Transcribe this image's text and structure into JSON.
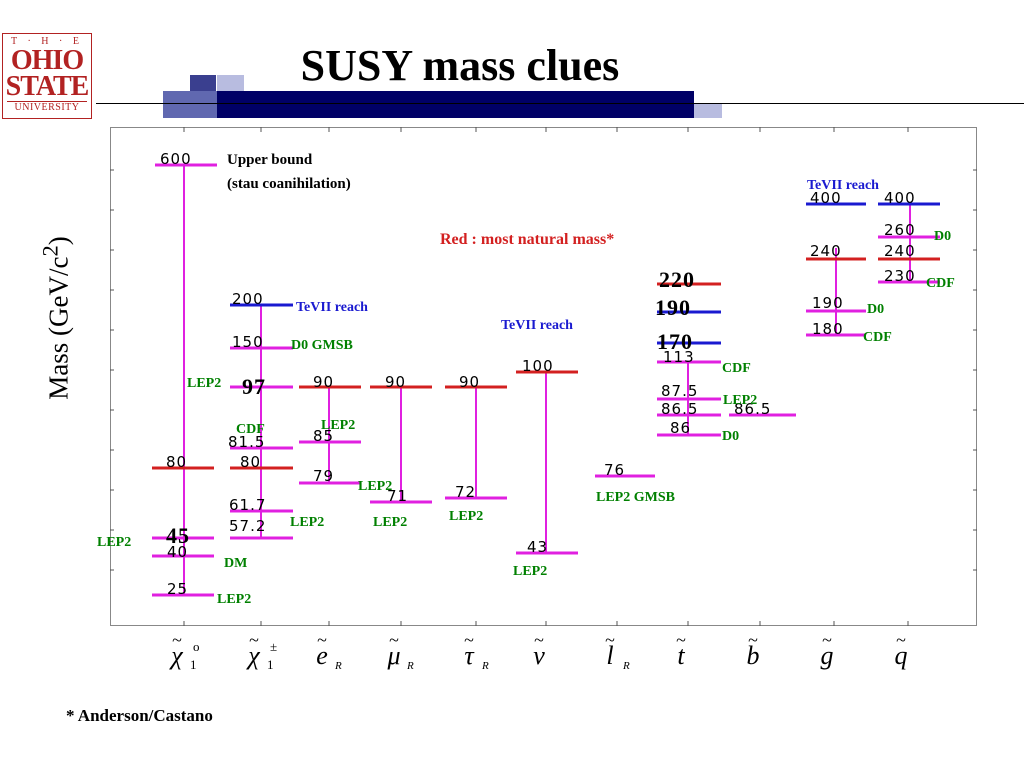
{
  "logo": {
    "line1": "T · H · E",
    "line2": "OHIO",
    "line3": "STATE",
    "line4": "UNIVERSITY"
  },
  "title": "SUSY mass clues",
  "footnote": "* Anderson/Castano",
  "colors": {
    "magenta": "#e020e0",
    "red": "#d32020",
    "blue": "#1a1ad0",
    "green": "#008000",
    "navy": "#000066",
    "logo_red": "#b22222"
  },
  "chart_data": {
    "type": "table",
    "ylabel": "Mass (GeV/c²)",
    "categories": [
      {
        "symbol": "χ",
        "sup": "o",
        "sub": "1"
      },
      {
        "symbol": "χ",
        "sup": "±",
        "sub": "1"
      },
      {
        "symbol": "e",
        "sub": "R"
      },
      {
        "symbol": "μ",
        "sub": "R"
      },
      {
        "symbol": "τ",
        "sub": "R"
      },
      {
        "symbol": "ν"
      },
      {
        "symbol": "l",
        "sub": "R"
      },
      {
        "symbol": "t"
      },
      {
        "symbol": "b"
      },
      {
        "symbol": "g"
      },
      {
        "symbol": "q"
      }
    ],
    "marks": [
      {
        "label": "600",
        "color": "magenta"
      },
      {
        "label": "80",
        "color": "red"
      },
      {
        "label": "45",
        "color": "magenta",
        "bold": true
      },
      {
        "label": "40",
        "color": "magenta"
      },
      {
        "label": "25",
        "color": "magenta"
      },
      {
        "label": "200",
        "color": "blue"
      },
      {
        "label": "150",
        "color": "magenta"
      },
      {
        "label": "97",
        "color": "magenta",
        "bold": true
      },
      {
        "label": "81.5",
        "color": "magenta"
      },
      {
        "label": "80",
        "color": "red"
      },
      {
        "label": "61.7",
        "color": "magenta"
      },
      {
        "label": "57.2",
        "color": "magenta"
      },
      {
        "label": "90",
        "color": "red"
      },
      {
        "label": "85",
        "color": "magenta"
      },
      {
        "label": "79",
        "color": "magenta"
      },
      {
        "label": "90",
        "color": "red"
      },
      {
        "label": "71",
        "color": "magenta"
      },
      {
        "label": "90",
        "color": "red"
      },
      {
        "label": "72",
        "color": "magenta"
      },
      {
        "label": "100",
        "color": "red"
      },
      {
        "label": "43",
        "color": "magenta"
      },
      {
        "label": "76",
        "color": "magenta"
      },
      {
        "label": "220",
        "color": "red",
        "bold": true
      },
      {
        "label": "190",
        "color": "blue",
        "bold": true
      },
      {
        "label": "170",
        "color": "blue",
        "bold": true
      },
      {
        "label": "113",
        "color": "magenta"
      },
      {
        "label": "87.5",
        "color": "magenta"
      },
      {
        "label": "86.5",
        "color": "magenta"
      },
      {
        "label": "86",
        "color": "magenta"
      },
      {
        "label": "86.5",
        "color": "magenta"
      },
      {
        "label": "400",
        "color": "blue"
      },
      {
        "label": "240",
        "color": "red"
      },
      {
        "label": "190",
        "color": "magenta"
      },
      {
        "label": "180",
        "color": "magenta"
      },
      {
        "label": "400",
        "color": "blue"
      },
      {
        "label": "260",
        "color": "magenta"
      },
      {
        "label": "240",
        "color": "red"
      },
      {
        "label": "230",
        "color": "magenta"
      }
    ],
    "annotations": [
      {
        "text": "Upper bound",
        "color": "#000000"
      },
      {
        "text": "(stau coanihilation)",
        "color": "#000000"
      },
      {
        "text": "TeVII reach",
        "color": "#1a1ad0"
      },
      {
        "text": "Red : most natural mass*",
        "color": "#d32020"
      },
      {
        "text": "TeVII reach",
        "color": "#1a1ad0"
      },
      {
        "text": "TeVII reach",
        "color": "#1a1ad0"
      },
      {
        "text": "D0 GMSB",
        "color": "#008000"
      },
      {
        "text": "LEP2",
        "color": "#008000"
      },
      {
        "text": "CDF",
        "color": "#008000"
      },
      {
        "text": "LEP2",
        "color": "#008000"
      },
      {
        "text": "DM",
        "color": "#008000"
      },
      {
        "text": "LEP2",
        "color": "#008000"
      },
      {
        "text": "LEP2",
        "color": "#008000"
      },
      {
        "text": "LEP2",
        "color": "#008000"
      },
      {
        "text": "LEP2",
        "color": "#008000"
      },
      {
        "text": "LEP2",
        "color": "#008000"
      },
      {
        "text": "LEP2",
        "color": "#008000"
      },
      {
        "text": "LEP2",
        "color": "#008000"
      },
      {
        "text": "LEP2 GMSB",
        "color": "#008000"
      },
      {
        "text": "CDF",
        "color": "#008000"
      },
      {
        "text": "LEP2",
        "color": "#008000"
      },
      {
        "text": "D0",
        "color": "#008000"
      },
      {
        "text": "D0",
        "color": "#008000"
      },
      {
        "text": "CDF",
        "color": "#008000"
      },
      {
        "text": "D0",
        "color": "#008000"
      },
      {
        "text": "CDF",
        "color": "#008000"
      }
    ]
  }
}
